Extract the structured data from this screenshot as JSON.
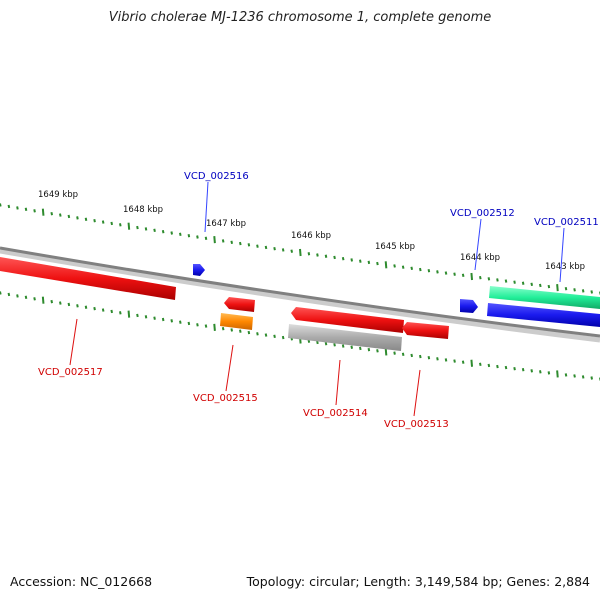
{
  "title": "Vibrio cholerae MJ-1236 chromosome 1, complete genome",
  "footer": {
    "accession": "Accession: NC_012668",
    "summary": "Topology: circular; Length: 3,149,584 bp; Genes: 2,884"
  },
  "colors": {
    "backbone": "#808080",
    "tick": "#2e8b2e",
    "forward_label": "#0000c0",
    "reverse_label": "#d00000",
    "red": "#ee1111",
    "blue": "#1a1aee",
    "teal": "#22ee99",
    "orange": "#ff8800",
    "gray": "#aaaaaa"
  },
  "scale_labels": [
    "1649 kbp",
    "1648 kbp",
    "1647 kbp",
    "1646 kbp",
    "1645 kbp",
    "1644 kbp",
    "1643 kbp"
  ],
  "features": [
    {
      "id": "VCD_002516",
      "color": "blue",
      "strand": "forward"
    },
    {
      "id": "VCD_002512",
      "color": "blue",
      "strand": "forward"
    },
    {
      "id": "VCD_002511",
      "color": "blue",
      "strand": "forward"
    },
    {
      "id": "",
      "color": "teal",
      "strand": "forward"
    },
    {
      "id": "VCD_002517",
      "color": "red",
      "strand": "reverse"
    },
    {
      "id": "VCD_002515",
      "color": "red",
      "strand": "reverse"
    },
    {
      "id": "",
      "color": "orange",
      "strand": "reverse"
    },
    {
      "id": "VCD_002514",
      "color": "red",
      "strand": "reverse"
    },
    {
      "id": "",
      "color": "gray",
      "strand": "reverse"
    },
    {
      "id": "VCD_002513",
      "color": "red",
      "strand": "reverse"
    }
  ]
}
